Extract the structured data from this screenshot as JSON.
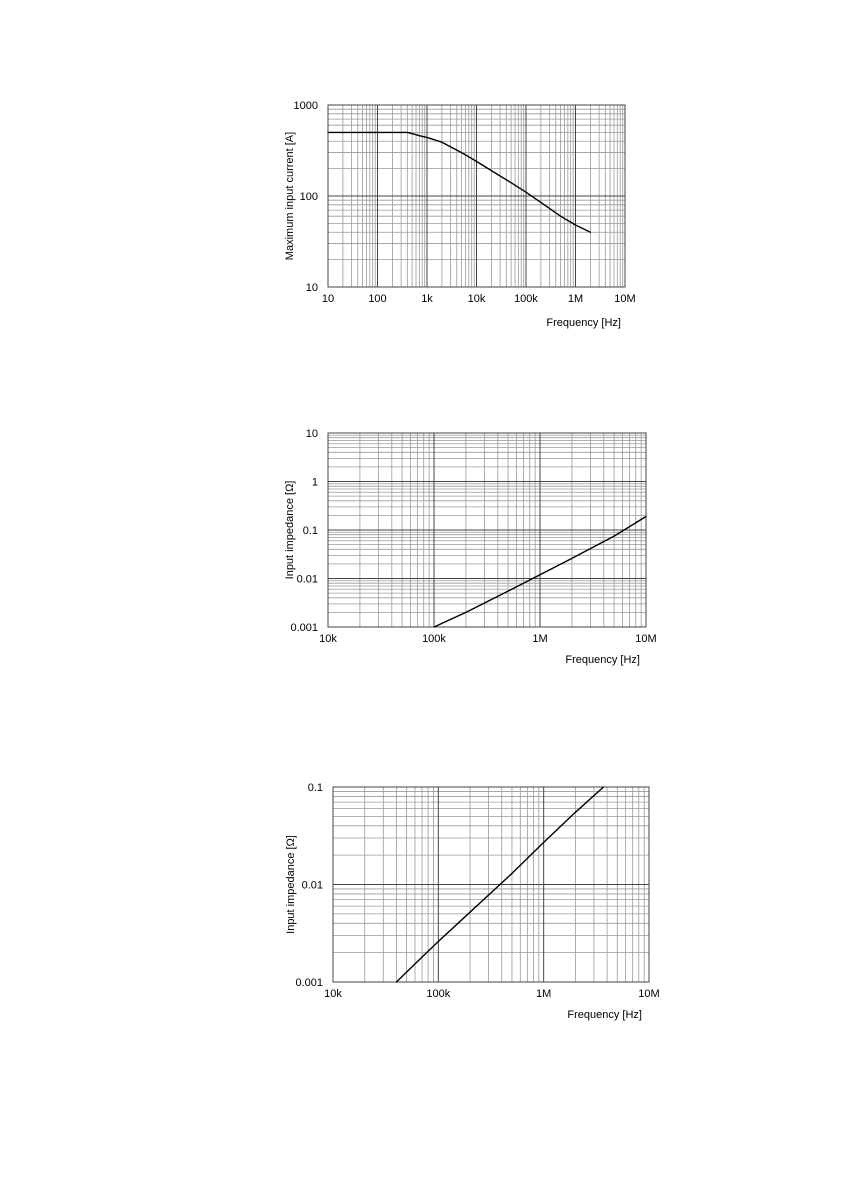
{
  "chart_data": [
    {
      "type": "line",
      "xscale": "log",
      "yscale": "log",
      "xlim": [
        10,
        10000000
      ],
      "ylim": [
        10,
        1000
      ],
      "xticks": [
        10,
        100,
        1000,
        10000,
        100000,
        1000000,
        10000000
      ],
      "xtick_labels": [
        "10",
        "100",
        "1k",
        "10k",
        "100k",
        "1M",
        "10M"
      ],
      "yticks": [
        10,
        100,
        1000
      ],
      "ytick_labels": [
        "10",
        "100",
        "1000"
      ],
      "xlabel": "Frequency [Hz]",
      "ylabel": "Maximum input current [A]",
      "grid": true,
      "line_color": "#000000",
      "series": [
        {
          "x": [
            10,
            100,
            400,
            500,
            700,
            1000,
            2000,
            5000,
            10000,
            20000,
            50000,
            100000,
            200000,
            500000,
            1000000,
            2000000
          ],
          "y": [
            500,
            500,
            500,
            485,
            460,
            440,
            390,
            300,
            240,
            190,
            140,
            110,
            85,
            60,
            48,
            40
          ]
        }
      ]
    },
    {
      "type": "line",
      "xscale": "log",
      "yscale": "log",
      "xlim": [
        10000,
        10000000
      ],
      "ylim": [
        0.001,
        10
      ],
      "xticks": [
        10000,
        100000,
        1000000,
        10000000
      ],
      "xtick_labels": [
        "10k",
        "100k",
        "1M",
        "10M"
      ],
      "yticks": [
        0.001,
        0.01,
        0.1,
        1,
        10
      ],
      "ytick_labels": [
        "0.001",
        "0.01",
        "0.1",
        "1",
        "10"
      ],
      "xlabel": "Frequency [Hz]",
      "ylabel": "Input impedance [Ω]",
      "grid": true,
      "line_color": "#000000",
      "series": [
        {
          "x": [
            100000,
            200000,
            500000,
            1000000,
            2000000,
            5000000,
            10000000
          ],
          "y": [
            0.001,
            0.002,
            0.0055,
            0.012,
            0.026,
            0.075,
            0.19
          ]
        }
      ]
    },
    {
      "type": "line",
      "xscale": "log",
      "yscale": "log",
      "xlim": [
        10000,
        10000000
      ],
      "ylim": [
        0.001,
        0.1
      ],
      "xticks": [
        10000,
        100000,
        1000000,
        10000000
      ],
      "xtick_labels": [
        "10k",
        "100k",
        "1M",
        "10M"
      ],
      "yticks": [
        0.001,
        0.01,
        0.1
      ],
      "ytick_labels": [
        "0.001",
        "0.01",
        "0.1"
      ],
      "xlabel": "Frequency [Hz]",
      "ylabel": "Input impedance [Ω]",
      "grid": true,
      "line_color": "#000000",
      "series": [
        {
          "x": [
            40000,
            70000,
            100000,
            200000,
            500000,
            1000000,
            2000000,
            3700000
          ],
          "y": [
            0.001,
            0.0018,
            0.0026,
            0.0052,
            0.013,
            0.027,
            0.055,
            0.1
          ]
        }
      ]
    }
  ]
}
